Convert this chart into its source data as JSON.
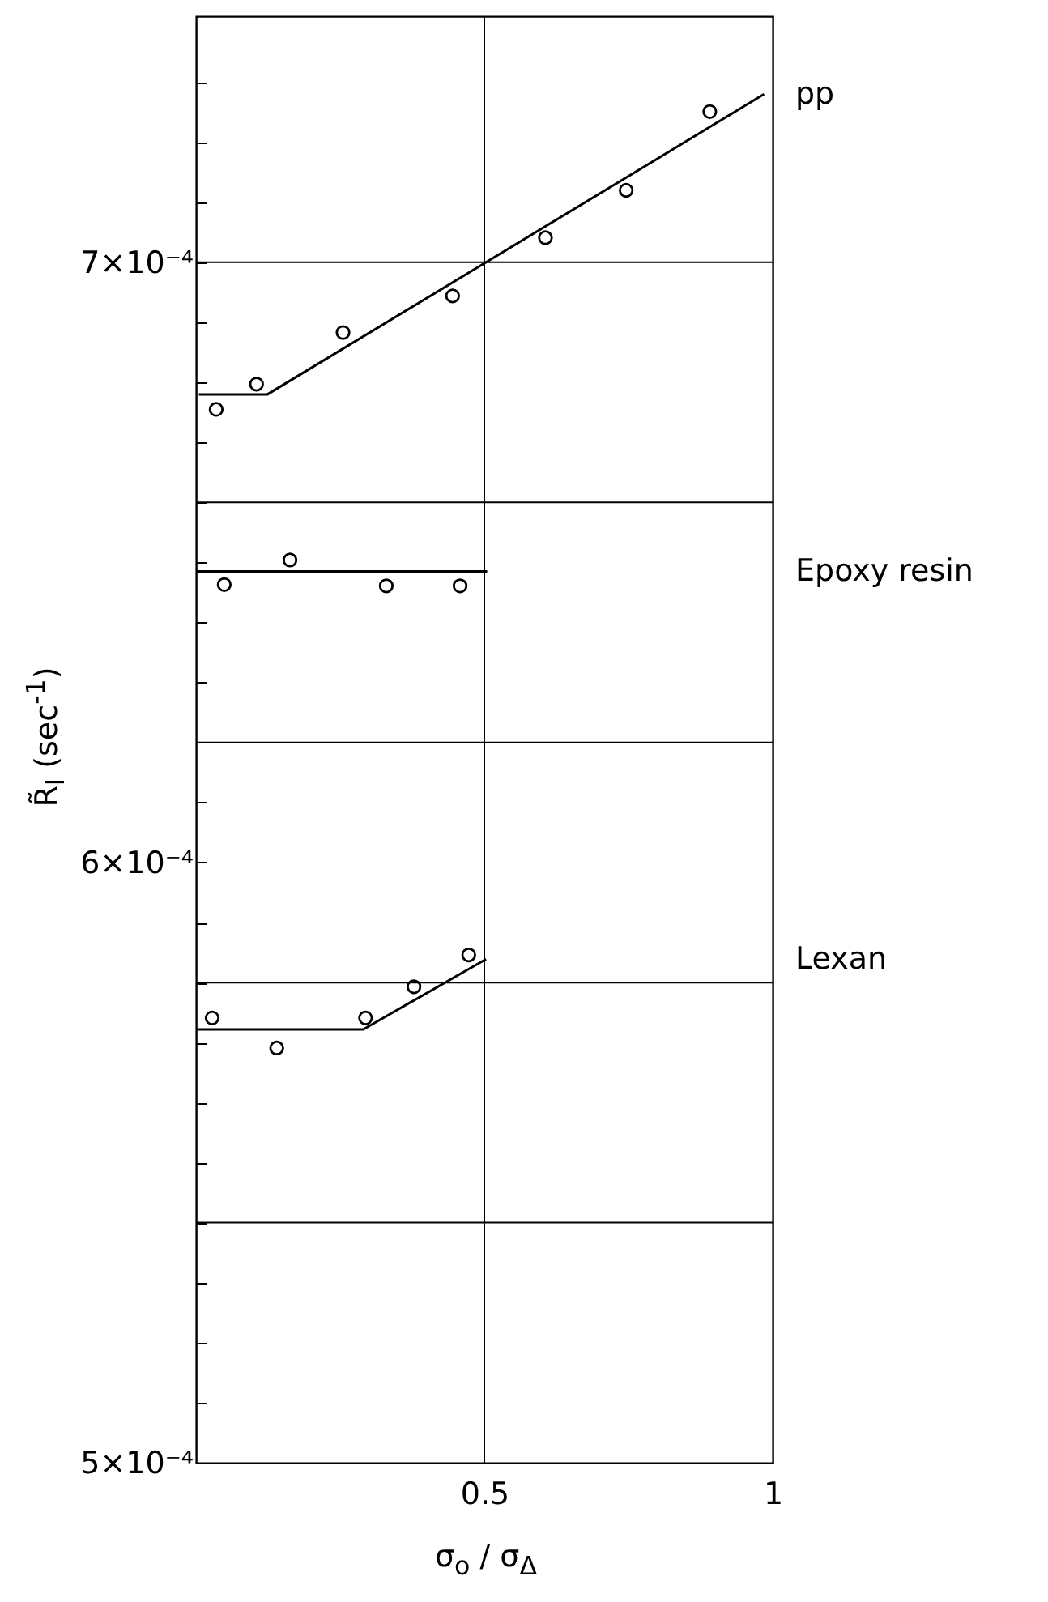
{
  "chart_data": {
    "type": "scatter",
    "xlabel": "σ$_{o}$ / σ$_{Δ}$",
    "ylabel": "R̃$_{I}$ (sec$^{-1}$)",
    "xlim": [
      0,
      1
    ],
    "xticks": [
      0.5,
      1
    ],
    "ylim": [
      0.0005,
      0.000741
    ],
    "yticks": [
      {
        "value": 0.0005,
        "label": "5×10⁻⁴"
      },
      {
        "value": 0.00051,
        "label": null
      },
      {
        "value": 0.00052,
        "label": null
      },
      {
        "value": 0.00053,
        "label": null
      },
      {
        "value": 0.00054,
        "label": null
      },
      {
        "value": 0.00055,
        "label": null
      },
      {
        "value": 0.00056,
        "label": null
      },
      {
        "value": 0.00057,
        "label": null
      },
      {
        "value": 0.00058,
        "label": null
      },
      {
        "value": 0.00059,
        "label": null
      },
      {
        "value": 0.0006,
        "label": "6×10⁻⁴"
      },
      {
        "value": 0.00061,
        "label": null
      },
      {
        "value": 0.00062,
        "label": null
      },
      {
        "value": 0.00063,
        "label": null
      },
      {
        "value": 0.00064,
        "label": null
      },
      {
        "value": 0.00065,
        "label": null
      },
      {
        "value": 0.00066,
        "label": null
      },
      {
        "value": 0.00067,
        "label": null
      },
      {
        "value": 0.00068,
        "label": null
      },
      {
        "value": 0.00069,
        "label": null
      },
      {
        "value": 0.0007,
        "label": "7×10⁻⁴"
      },
      {
        "value": 0.00071,
        "label": null
      },
      {
        "value": 0.00072,
        "label": null
      },
      {
        "value": 0.00073,
        "label": null
      }
    ],
    "ref_lines": [
      {
        "axis": "x",
        "value": 0.5,
        "color": "#000000"
      },
      {
        "axis": "y",
        "value": 0.0007,
        "color": "#000000"
      },
      {
        "axis": "y",
        "value": 0.00066,
        "color": "#000000"
      },
      {
        "axis": "y",
        "value": 0.00062,
        "color": "#000000"
      },
      {
        "axis": "y",
        "value": 0.00058,
        "color": "#000000"
      },
      {
        "axis": "y",
        "value": 0.00054,
        "color": "#000000"
      }
    ],
    "series": [
      {
        "type": "scatter",
        "marker": "circle",
        "color": "#000000",
        "x": [
          0.035,
          0.105,
          0.255,
          0.445,
          0.606,
          0.746,
          0.891
        ],
        "values": [
          0.0006755,
          0.0006797,
          0.0006883,
          0.0006944,
          0.0007041,
          0.000712,
          0.0007251
        ]
      },
      {
        "type": "line",
        "name": "pp",
        "marker": "none",
        "color": "#000000",
        "x": [
          0.005,
          0.124,
          0.985
        ],
        "values": [
          0.000678,
          0.000678,
          0.000728
        ]
      },
      {
        "type": "scatter",
        "marker": "circle",
        "color": "#000000",
        "x": [
          0.049,
          0.163,
          0.33,
          0.458
        ],
        "values": [
          0.0006463,
          0.0006504,
          0.0006461,
          0.0006461
        ]
      },
      {
        "type": "line",
        "name": "Epoxy resin",
        "marker": "none",
        "color": "#000000",
        "x": [
          0.0,
          0.505
        ],
        "values": [
          0.0006485,
          0.0006485
        ]
      },
      {
        "type": "scatter",
        "marker": "circle",
        "color": "#000000",
        "x": [
          0.028,
          0.14,
          0.294,
          0.378,
          0.473
        ],
        "values": [
          0.0005741,
          0.0005691,
          0.0005741,
          0.0005793,
          0.0005846
        ]
      },
      {
        "type": "line",
        "name": "Lexan",
        "marker": "none",
        "color": "#000000",
        "x": [
          0.0,
          0.29,
          0.503
        ],
        "values": [
          0.0005722,
          0.0005722,
          0.0005839
        ]
      }
    ]
  }
}
